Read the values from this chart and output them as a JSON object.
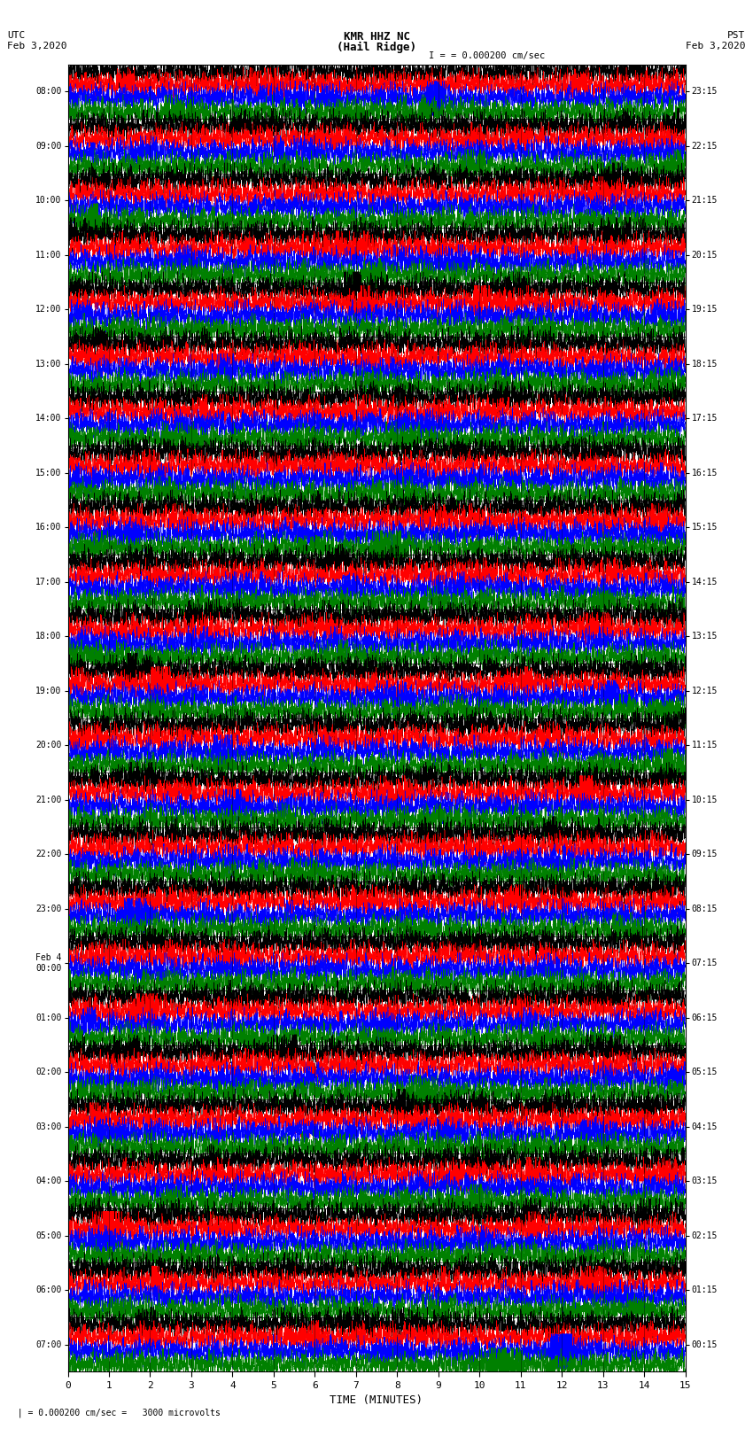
{
  "title_line1": "KMR HHZ NC",
  "title_line2": "(Hail Ridge)",
  "utc_label": "UTC",
  "utc_date": "Feb 3,2020",
  "pst_label": "PST",
  "pst_date": "Feb 3,2020",
  "scale_label": "= 0.000200 cm/sec",
  "bottom_scale_label": "= 0.000200 cm/sec =   3000 microvolts",
  "xlabel": "TIME (MINUTES)",
  "xlim": [
    0,
    15
  ],
  "xticks": [
    0,
    1,
    2,
    3,
    4,
    5,
    6,
    7,
    8,
    9,
    10,
    11,
    12,
    13,
    14,
    15
  ],
  "left_times": [
    "08:00",
    "09:00",
    "10:00",
    "11:00",
    "12:00",
    "13:00",
    "14:00",
    "15:00",
    "16:00",
    "17:00",
    "18:00",
    "19:00",
    "20:00",
    "21:00",
    "22:00",
    "23:00",
    "Feb 4\n00:00",
    "01:00",
    "02:00",
    "03:00",
    "04:00",
    "05:00",
    "06:00",
    "07:00"
  ],
  "right_times": [
    "00:15",
    "01:15",
    "02:15",
    "03:15",
    "04:15",
    "05:15",
    "06:15",
    "07:15",
    "08:15",
    "09:15",
    "10:15",
    "11:15",
    "12:15",
    "13:15",
    "14:15",
    "15:15",
    "16:15",
    "17:15",
    "18:15",
    "19:15",
    "20:15",
    "21:15",
    "22:15",
    "23:15"
  ],
  "n_rows": 24,
  "traces_per_row": 4,
  "colors": [
    "black",
    "red",
    "blue",
    "green"
  ],
  "bg_color": "white",
  "noise_seed": 42,
  "fig_width": 8.5,
  "fig_height": 16.13,
  "dpi": 100
}
